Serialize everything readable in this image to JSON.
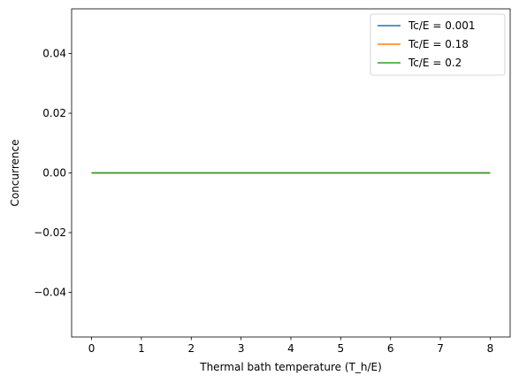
{
  "chart_data": {
    "type": "line",
    "title": "",
    "xlabel": "Thermal bath temperature (T_h/E)",
    "ylabel": "Concurrence",
    "xlim": [
      -0.4,
      8.4
    ],
    "ylim": [
      -0.055,
      0.055
    ],
    "xticks": [
      0,
      1,
      2,
      3,
      4,
      5,
      6,
      7,
      8
    ],
    "xtick_labels": [
      "0",
      "1",
      "2",
      "3",
      "4",
      "5",
      "6",
      "7",
      "8"
    ],
    "yticks": [
      0.04,
      0.02,
      0.0,
      -0.02,
      -0.04
    ],
    "ytick_labels": [
      "0.04",
      "0.02",
      "0.00",
      "−0.02",
      "−0.04"
    ],
    "grid": false,
    "legend_position": "top-right",
    "series": [
      {
        "name": "Tc/E = 0.001",
        "color": "#1f77b4",
        "x": [
          0,
          8
        ],
        "y": [
          0,
          0
        ]
      },
      {
        "name": "Tc/E = 0.18",
        "color": "#ff7f0e",
        "x": [
          0,
          8
        ],
        "y": [
          0,
          0
        ]
      },
      {
        "name": "Tc/E = 0.2",
        "color": "#2ca02c",
        "x": [
          0,
          8
        ],
        "y": [
          0,
          0
        ]
      }
    ]
  }
}
